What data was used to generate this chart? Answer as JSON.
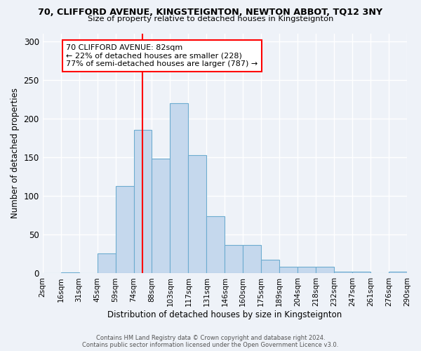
{
  "title1": "70, CLIFFORD AVENUE, KINGSTEIGNTON, NEWTON ABBOT, TQ12 3NY",
  "title2": "Size of property relative to detached houses in Kingsteignton",
  "xlabel": "Distribution of detached houses by size in Kingsteignton",
  "ylabel": "Number of detached properties",
  "bar_color": "#c5d8ed",
  "bar_edge_color": "#6dacd0",
  "bin_labels": [
    "2sqm",
    "16sqm",
    "31sqm",
    "45sqm",
    "59sqm",
    "74sqm",
    "88sqm",
    "103sqm",
    "117sqm",
    "131sqm",
    "146sqm",
    "160sqm",
    "175sqm",
    "189sqm",
    "204sqm",
    "218sqm",
    "232sqm",
    "247sqm",
    "261sqm",
    "276sqm",
    "290sqm"
  ],
  "bar_heights": [
    0,
    1,
    0,
    26,
    113,
    185,
    148,
    220,
    153,
    74,
    37,
    37,
    18,
    9,
    9,
    9,
    2,
    2,
    0,
    2
  ],
  "ylim": [
    0,
    310
  ],
  "yticks": [
    0,
    50,
    100,
    150,
    200,
    250,
    300
  ],
  "property_label": "70 CLIFFORD AVENUE: 82sqm",
  "annotation_line1": "← 22% of detached houses are smaller (228)",
  "annotation_line2": "77% of semi-detached houses are larger (787) →",
  "vline_x": 5.5,
  "footer1": "Contains HM Land Registry data © Crown copyright and database right 2024.",
  "footer2": "Contains public sector information licensed under the Open Government Licence v3.0.",
  "background_color": "#eef2f8",
  "grid_color": "#ffffff"
}
